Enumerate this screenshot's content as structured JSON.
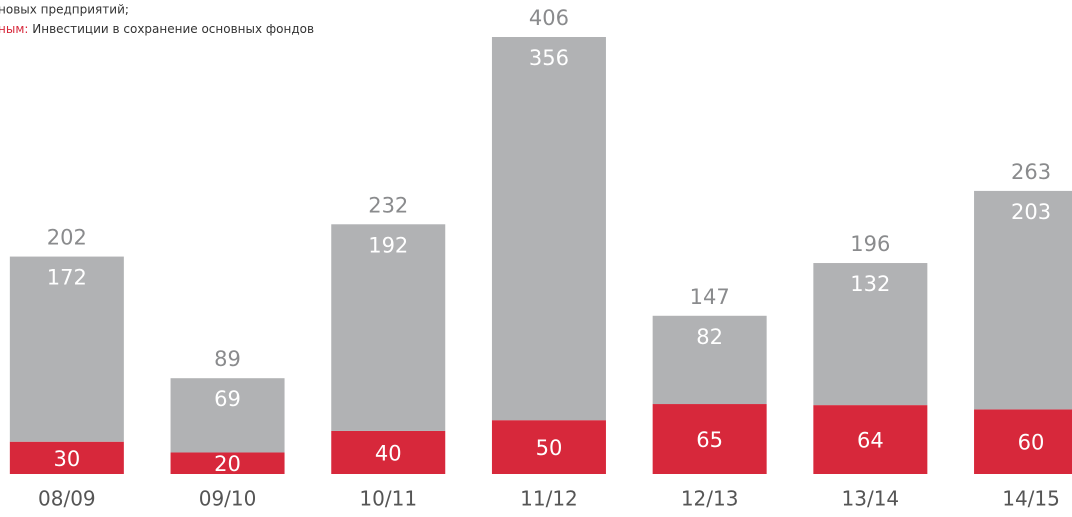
{
  "chart_data": {
    "type": "stacked_bar",
    "legend_lines": [
      {
        "text": "новых предприятий;"
      },
      {
        "key": "ным:",
        "text": "Инвестиции в сохранение основных фондов"
      }
    ],
    "categories": [
      "08/09",
      "09/10",
      "10/11",
      "11/12",
      "12/13",
      "13/14",
      "14/15"
    ],
    "series": [
      {
        "color": "#d7283b",
        "values": [
          30,
          20,
          40,
          50,
          65,
          64,
          60
        ]
      },
      {
        "color": "#b1b2b4",
        "values": [
          172,
          69,
          192,
          356,
          82,
          132,
          203
        ]
      }
    ],
    "totals": [
      202,
      89,
      232,
      406,
      147,
      196,
      263
    ],
    "ylim": [
      0,
      406
    ]
  }
}
